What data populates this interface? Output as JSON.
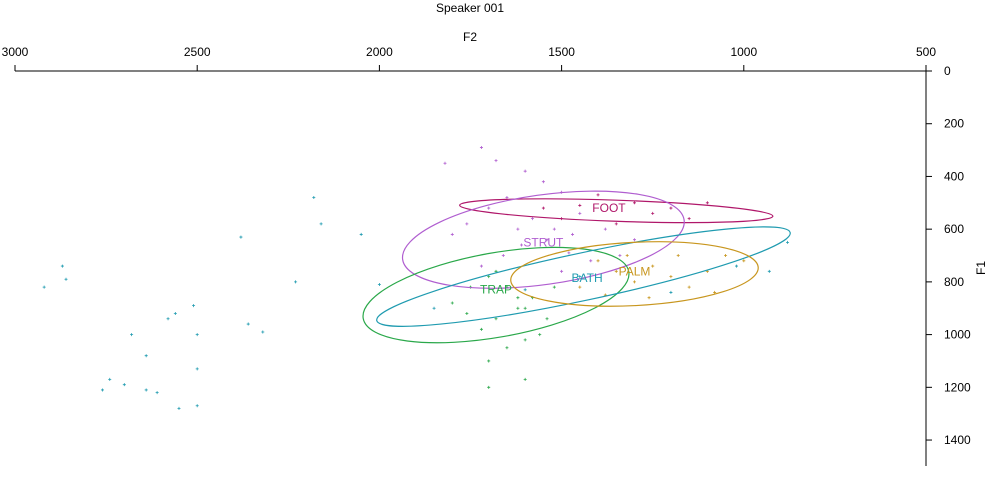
{
  "chart_data": {
    "type": "scatter",
    "title": "Speaker 001",
    "xlabel": "F2",
    "ylabel": "F1",
    "xlim": [
      3000,
      500
    ],
    "ylim": [
      0,
      1500
    ],
    "x_ticks": [
      "3000",
      "2500",
      "2000",
      "1500",
      "1000",
      "500"
    ],
    "y_ticks": [
      "0",
      "200",
      "400",
      "600",
      "800",
      "1000",
      "1200",
      "1400"
    ],
    "legend": "none",
    "series": [
      {
        "name": "FOOT",
        "color": "#b0176a",
        "ellipse": {
          "cx": 1350,
          "cy": 530,
          "rx": 430,
          "ry": 40,
          "angle_deg": 2
        },
        "label_at": [
          1370,
          535
        ],
        "points": [
          [
            1450,
            510
          ],
          [
            1400,
            470
          ],
          [
            1300,
            500
          ],
          [
            1250,
            540
          ],
          [
            1500,
            560
          ],
          [
            1350,
            580
          ],
          [
            1200,
            520
          ],
          [
            1150,
            560
          ],
          [
            1100,
            500
          ],
          [
            1550,
            520
          ]
        ]
      },
      {
        "name": "STRUT",
        "color": "#b05ed0",
        "ellipse": {
          "cx": 1550,
          "cy": 640,
          "rx": 390,
          "ry": 170,
          "angle_deg": -8
        },
        "label_at": [
          1550,
          665
        ],
        "points": [
          [
            1720,
            290
          ],
          [
            1680,
            340
          ],
          [
            1600,
            380
          ],
          [
            1550,
            420
          ],
          [
            1500,
            460
          ],
          [
            1650,
            480
          ],
          [
            1700,
            520
          ],
          [
            1580,
            560
          ],
          [
            1620,
            600
          ],
          [
            1540,
            640
          ],
          [
            1480,
            690
          ],
          [
            1660,
            700
          ],
          [
            1720,
            740
          ],
          [
            1500,
            760
          ],
          [
            1420,
            720
          ],
          [
            1380,
            600
          ],
          [
            1300,
            640
          ],
          [
            1450,
            540
          ],
          [
            1760,
            580
          ],
          [
            1800,
            620
          ],
          [
            1820,
            350
          ],
          [
            1520,
            600
          ],
          [
            1610,
            660
          ],
          [
            1470,
            620
          ],
          [
            1340,
            700
          ]
        ]
      },
      {
        "name": "TRAP",
        "color": "#2aa84a",
        "ellipse": {
          "cx": 1680,
          "cy": 850,
          "rx": 370,
          "ry": 160,
          "angle_deg": -10
        },
        "label_at": [
          1680,
          845
        ],
        "points": [
          [
            1700,
            780
          ],
          [
            1650,
            820
          ],
          [
            1620,
            860
          ],
          [
            1600,
            900
          ],
          [
            1680,
            940
          ],
          [
            1720,
            980
          ],
          [
            1560,
            1000
          ],
          [
            1650,
            1050
          ],
          [
            1700,
            1100
          ],
          [
            1620,
            900
          ],
          [
            1580,
            860
          ],
          [
            1750,
            820
          ],
          [
            1800,
            880
          ],
          [
            1540,
            940
          ],
          [
            1600,
            1020
          ],
          [
            1700,
            1200
          ],
          [
            1600,
            1170
          ],
          [
            1680,
            760
          ],
          [
            1520,
            820
          ],
          [
            1760,
            920
          ]
        ]
      },
      {
        "name": "BATH",
        "color": "#1f9bb0",
        "ellipse": {
          "cx": 1440,
          "cy": 780,
          "rx": 580,
          "ry": 90,
          "angle_deg": -12
        },
        "label_at": [
          1430,
          800
        ],
        "points": [
          [
            2920,
            820
          ],
          [
            2870,
            740
          ],
          [
            2860,
            790
          ],
          [
            2760,
            1210
          ],
          [
            2740,
            1170
          ],
          [
            2700,
            1190
          ],
          [
            2680,
            1000
          ],
          [
            2640,
            1080
          ],
          [
            2640,
            1210
          ],
          [
            2610,
            1220
          ],
          [
            2580,
            940
          ],
          [
            2560,
            920
          ],
          [
            2550,
            1280
          ],
          [
            2510,
            890
          ],
          [
            2500,
            1000
          ],
          [
            2500,
            1270
          ],
          [
            2500,
            1130
          ],
          [
            2380,
            630
          ],
          [
            2360,
            960
          ],
          [
            2320,
            990
          ],
          [
            2230,
            800
          ],
          [
            2180,
            480
          ],
          [
            2160,
            580
          ],
          [
            2050,
            620
          ],
          [
            2000,
            810
          ],
          [
            1850,
            900
          ],
          [
            1600,
            830
          ],
          [
            1450,
            780
          ],
          [
            1200,
            840
          ],
          [
            1020,
            740
          ],
          [
            930,
            760
          ],
          [
            880,
            650
          ]
        ]
      },
      {
        "name": "PALM",
        "color": "#c8961e",
        "ellipse": {
          "cx": 1300,
          "cy": 770,
          "rx": 340,
          "ry": 120,
          "angle_deg": -3
        },
        "label_at": [
          1300,
          775
        ],
        "points": [
          [
            1400,
            720
          ],
          [
            1350,
            760
          ],
          [
            1300,
            800
          ],
          [
            1250,
            740
          ],
          [
            1200,
            780
          ],
          [
            1150,
            820
          ],
          [
            1100,
            760
          ],
          [
            1050,
            700
          ],
          [
            1000,
            720
          ],
          [
            1450,
            820
          ],
          [
            1320,
            700
          ],
          [
            1180,
            700
          ],
          [
            1260,
            860
          ],
          [
            1380,
            850
          ],
          [
            1080,
            840
          ]
        ]
      }
    ]
  }
}
